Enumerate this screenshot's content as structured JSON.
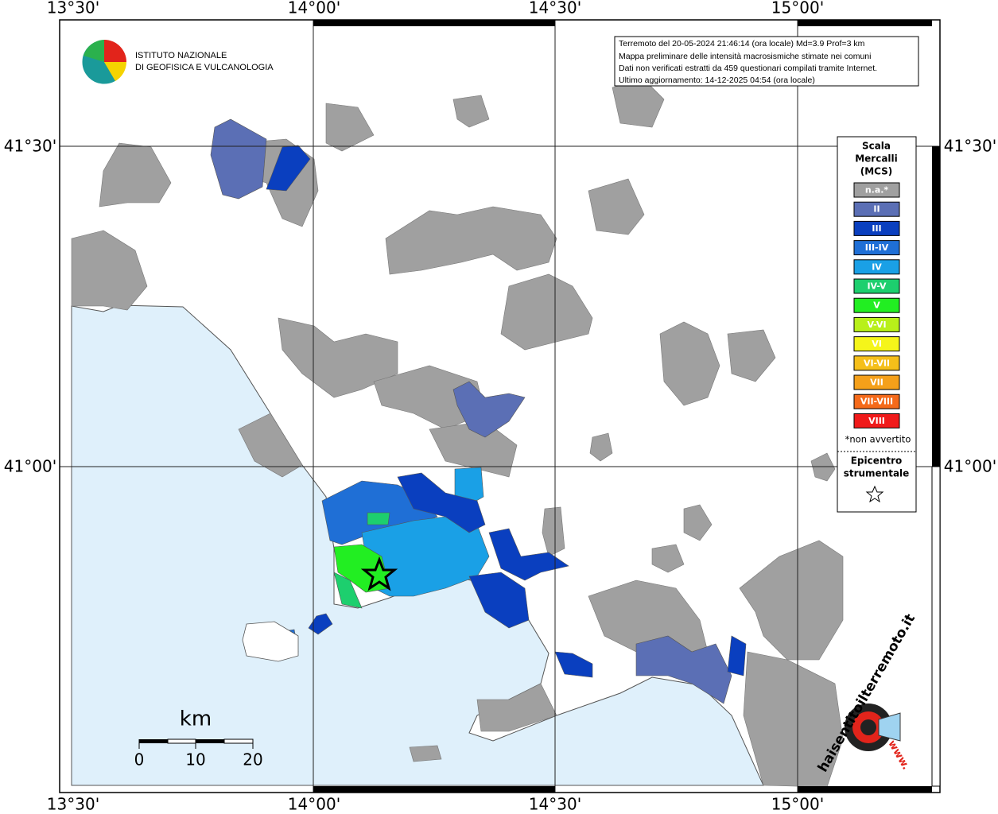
{
  "header": {
    "logo_lines": [
      "ISTITUTO NAZIONALE",
      "DI GEOFISICA E VULCANOLOGIA"
    ]
  },
  "info_box": {
    "lines": [
      "Terremoto del 20-05-2024 21:46:14 (ora locale) Md=3.9 Prof=3 km",
      "Mappa preliminare delle intensità macrosismiche stimate nei comuni",
      "Dati non verificati estratti da 459 questionari compilati tramite Internet.",
      "Ultimo aggiornamento: 14-12-2025 04:54 (ora locale)"
    ]
  },
  "axes": {
    "longitude_labels": [
      "13°30'",
      "14°00'",
      "14°30'",
      "15°00'"
    ],
    "latitude_labels": [
      "41°30'",
      "41°00'"
    ]
  },
  "legend": {
    "title_lines": [
      "Scala",
      "Mercalli",
      "(MCS)"
    ],
    "items": [
      {
        "label": "n.a.*",
        "color": "#a0a0a0"
      },
      {
        "label": "II",
        "color": "#5b6fb5"
      },
      {
        "label": "III",
        "color": "#0a3fbf"
      },
      {
        "label": "III-IV",
        "color": "#1f6fd6"
      },
      {
        "label": "IV",
        "color": "#1aa0e6"
      },
      {
        "label": "IV-V",
        "color": "#1dcf6e"
      },
      {
        "label": "V",
        "color": "#22ee22"
      },
      {
        "label": "V-VI",
        "color": "#b8f01a"
      },
      {
        "label": "VI",
        "color": "#f5f51a"
      },
      {
        "label": "VI-VII",
        "color": "#f5bf1a"
      },
      {
        "label": "VII",
        "color": "#f5a01a"
      },
      {
        "label": "VII-VIII",
        "color": "#f56a1a"
      },
      {
        "label": "VIII",
        "color": "#f01a1a"
      }
    ],
    "note": "*non avvertito",
    "epicenter_lines": [
      "Epicentro",
      "strumentale"
    ]
  },
  "scale_bar": {
    "unit": "km",
    "ticks": [
      0,
      10,
      20
    ]
  },
  "watermark": {
    "site": "haisentitoilterremoto.it",
    "prefix": "www."
  }
}
